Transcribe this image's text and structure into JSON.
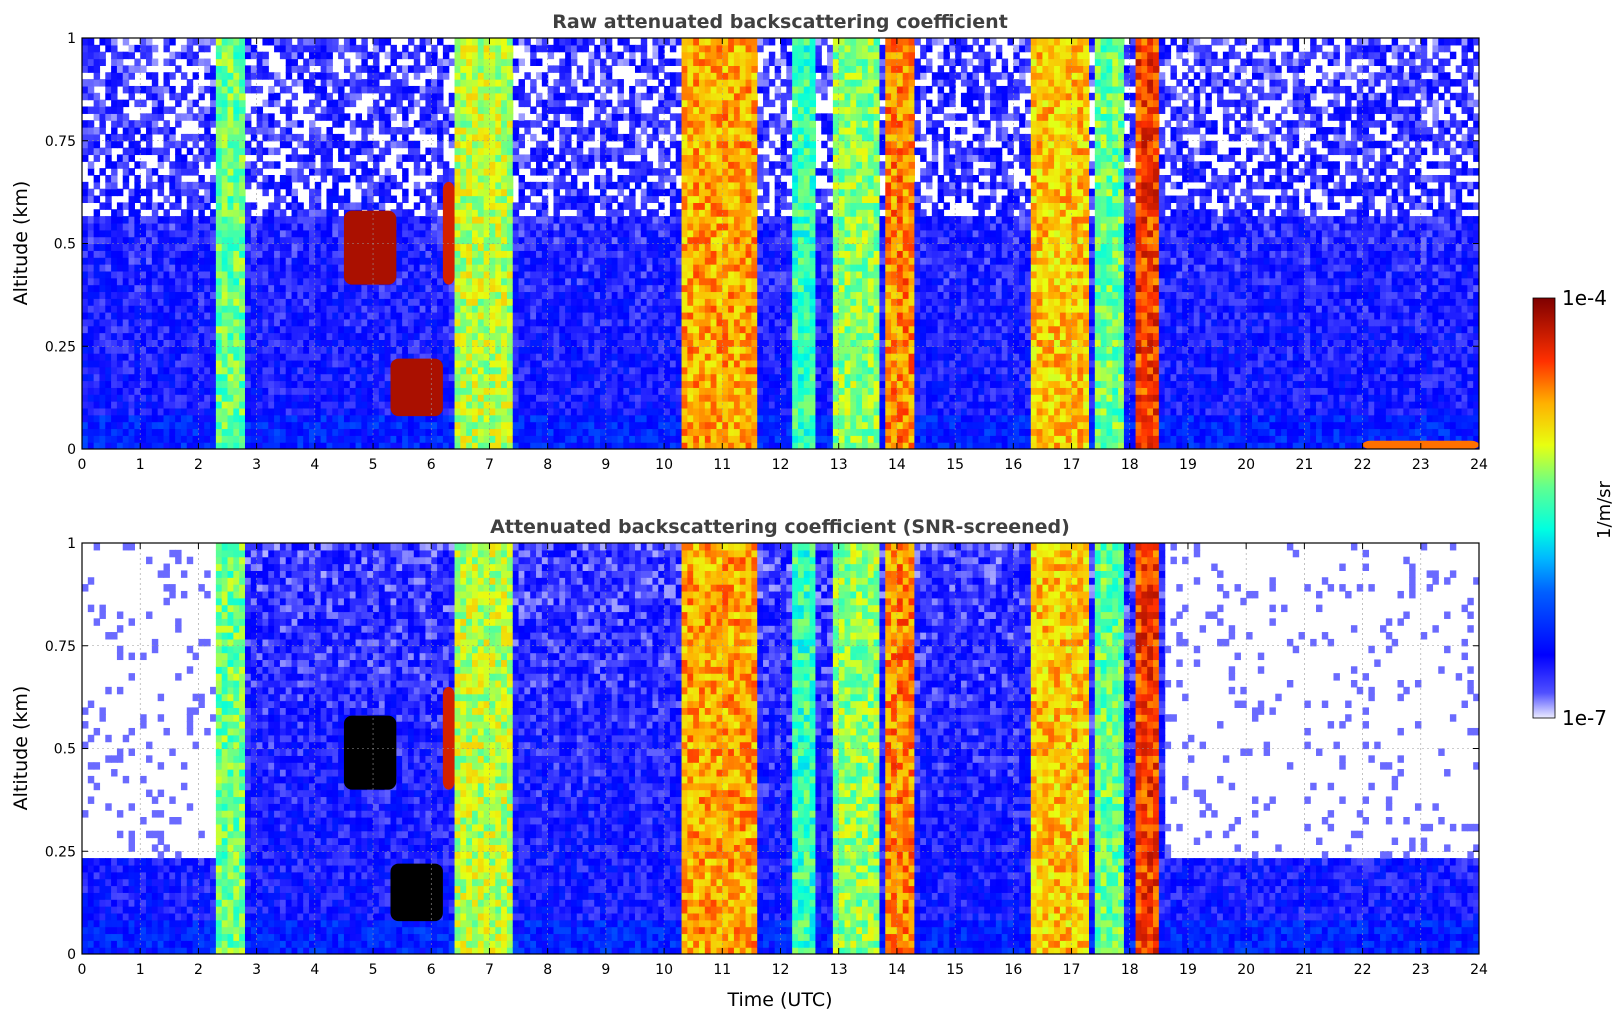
{
  "chart_data": [
    {
      "type": "heatmap",
      "title": "Raw attenuated backscattering coefficient",
      "xlabel": "",
      "ylabel": "Altitude (km)",
      "xlim": [
        0,
        24
      ],
      "ylim": [
        0,
        1
      ],
      "xticks": [
        "0",
        "1",
        "2",
        "3",
        "4",
        "5",
        "6",
        "7",
        "8",
        "9",
        "10",
        "11",
        "12",
        "13",
        "14",
        "15",
        "16",
        "17",
        "18",
        "19",
        "20",
        "21",
        "22",
        "23",
        "24"
      ],
      "yticks": [
        "0",
        "0.25",
        "0.5",
        "0.75",
        "1"
      ],
      "ytick_values": [
        0,
        0.25,
        0.5,
        0.75,
        1
      ],
      "grid": true,
      "screened": false,
      "color_scale": "log",
      "value_range": [
        1e-07,
        0.0001
      ],
      "bands": [
        {
          "t0": 0.0,
          "t1": 2.3,
          "kind": "clear"
        },
        {
          "t0": 2.3,
          "t1": 2.75,
          "kind": "thin-cloud",
          "level": 0.55
        },
        {
          "t0": 2.75,
          "t1": 6.4,
          "kind": "clear"
        },
        {
          "t0": 6.4,
          "t1": 7.4,
          "kind": "precip",
          "level": 0.62
        },
        {
          "t0": 7.4,
          "t1": 10.2,
          "kind": "clear"
        },
        {
          "t0": 10.3,
          "t1": 11.6,
          "kind": "precip",
          "level": 0.75
        },
        {
          "t0": 12.2,
          "t1": 12.6,
          "kind": "thin-cloud",
          "level": 0.5
        },
        {
          "t0": 12.9,
          "t1": 13.7,
          "kind": "precip",
          "level": 0.58
        },
        {
          "t0": 13.8,
          "t1": 14.25,
          "kind": "precip",
          "level": 0.78
        },
        {
          "t0": 16.3,
          "t1": 17.3,
          "kind": "precip",
          "level": 0.72
        },
        {
          "t0": 17.4,
          "t1": 17.9,
          "kind": "precip",
          "level": 0.55
        },
        {
          "t0": 18.1,
          "t1": 18.45,
          "kind": "precip",
          "level": 0.85
        },
        {
          "t0": 18.45,
          "t1": 24.0,
          "kind": "clear"
        }
      ],
      "features": [
        {
          "t0": 4.5,
          "t1": 5.4,
          "alt0": 0.4,
          "alt1": 0.58,
          "level": 0.95
        },
        {
          "t0": 5.3,
          "t1": 6.2,
          "alt0": 0.08,
          "alt1": 0.22,
          "level": 0.95
        },
        {
          "t0": 6.2,
          "t1": 6.4,
          "alt0": 0.4,
          "alt1": 0.65,
          "level": 0.9
        },
        {
          "t0": 22.0,
          "t1": 24.0,
          "alt0": 0.0,
          "alt1": 0.02,
          "level": 0.8
        }
      ]
    },
    {
      "type": "heatmap",
      "title": "Attenuated backscattering coefficient (SNR-screened)",
      "xlabel": "Time (UTC)",
      "ylabel": "Altitude (km)",
      "xlim": [
        0,
        24
      ],
      "ylim": [
        0,
        1
      ],
      "xticks": [
        "0",
        "1",
        "2",
        "3",
        "4",
        "5",
        "6",
        "7",
        "8",
        "9",
        "10",
        "11",
        "12",
        "13",
        "14",
        "15",
        "16",
        "17",
        "18",
        "19",
        "20",
        "21",
        "22",
        "23",
        "24"
      ],
      "yticks": [
        "0",
        "0.25",
        "0.5",
        "0.75",
        "1"
      ],
      "ytick_values": [
        0,
        0.25,
        0.5,
        0.75,
        1
      ],
      "grid": true,
      "screened": true,
      "color_scale": "log",
      "value_range": [
        1e-07,
        0.0001
      ],
      "screen_top_clear_km": 0.23,
      "bands": [
        {
          "t0": 0.0,
          "t1": 2.3,
          "kind": "clear"
        },
        {
          "t0": 2.3,
          "t1": 2.75,
          "kind": "thin-cloud",
          "level": 0.55
        },
        {
          "t0": 2.75,
          "t1": 6.4,
          "kind": "clear"
        },
        {
          "t0": 6.4,
          "t1": 7.4,
          "kind": "precip",
          "level": 0.62
        },
        {
          "t0": 7.4,
          "t1": 10.2,
          "kind": "clear"
        },
        {
          "t0": 10.3,
          "t1": 11.6,
          "kind": "precip",
          "level": 0.75
        },
        {
          "t0": 12.2,
          "t1": 12.6,
          "kind": "thin-cloud",
          "level": 0.5
        },
        {
          "t0": 12.9,
          "t1": 13.7,
          "kind": "precip",
          "level": 0.58
        },
        {
          "t0": 13.8,
          "t1": 14.25,
          "kind": "precip",
          "level": 0.78
        },
        {
          "t0": 16.3,
          "t1": 17.3,
          "kind": "precip",
          "level": 0.72
        },
        {
          "t0": 17.4,
          "t1": 17.9,
          "kind": "precip",
          "level": 0.55
        },
        {
          "t0": 18.1,
          "t1": 18.45,
          "kind": "precip",
          "level": 0.85
        },
        {
          "t0": 18.45,
          "t1": 24.0,
          "kind": "clear"
        }
      ],
      "features": [
        {
          "t0": 4.5,
          "t1": 5.4,
          "alt0": 0.4,
          "alt1": 0.58,
          "level": 1.0
        },
        {
          "t0": 5.3,
          "t1": 6.2,
          "alt0": 0.08,
          "alt1": 0.22,
          "level": 1.0
        },
        {
          "t0": 6.2,
          "t1": 6.4,
          "alt0": 0.4,
          "alt1": 0.65,
          "level": 0.9
        }
      ]
    }
  ],
  "colorbar": {
    "max_label": "1e-4",
    "min_label": "1e-7",
    "unit_label": "1/m/sr",
    "colormap": "jet"
  }
}
